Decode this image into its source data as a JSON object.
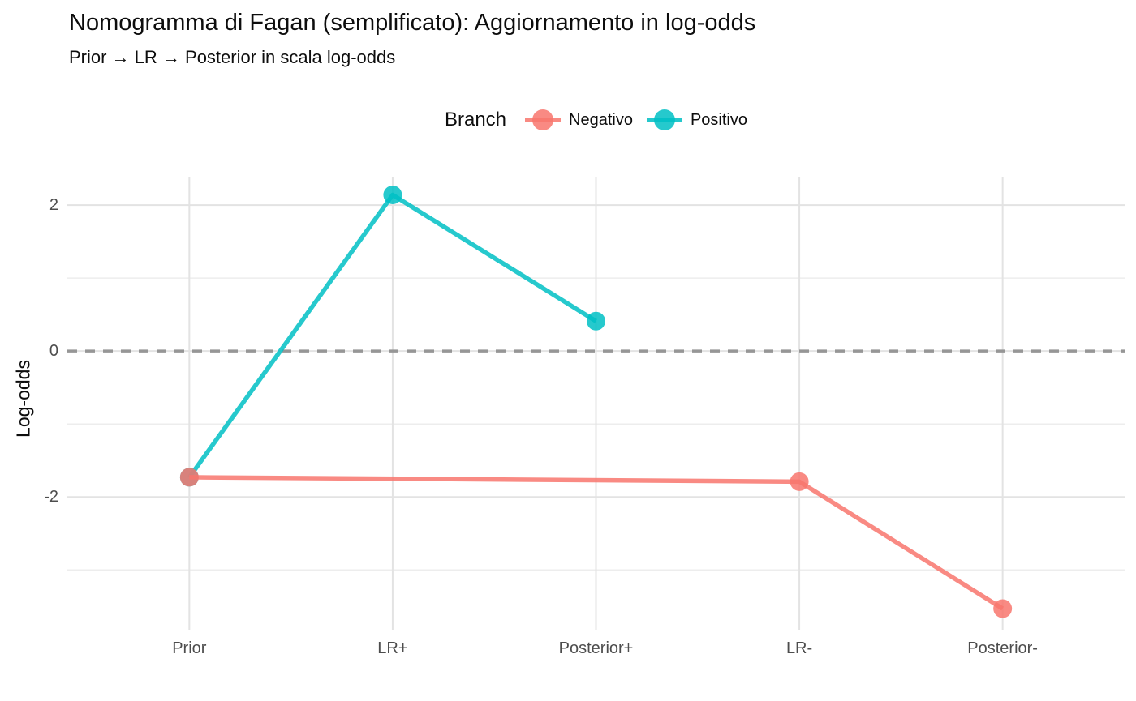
{
  "chart_data": {
    "type": "line",
    "title": "Nomogramma di Fagan (semplificato): Aggiornamento in log-odds",
    "subtitle": "Prior → LR → Posterior in scala log-odds",
    "ylabel": "Log-odds",
    "xlabel": "",
    "categories": [
      "Prior",
      "LR+",
      "Posterior+",
      "LR-",
      "Posterior-"
    ],
    "y_axis": {
      "major_ticks": [
        2,
        0,
        -2
      ],
      "minor_ticks": [
        1,
        -1,
        -3
      ],
      "ylim": [
        -3.83,
        2.39
      ]
    },
    "reference_line": {
      "y": 0,
      "style": "dashed",
      "color": "#969696"
    },
    "legend": {
      "title": "Branch",
      "position": "top"
    },
    "grid": {
      "major_color": "#e3e3e3",
      "minor_color": "#ededed",
      "background": "#ffffff"
    },
    "series": [
      {
        "name": "Negativo",
        "color": "#F8766D",
        "points": [
          {
            "x": "Prior",
            "y": -1.73
          },
          {
            "x": "LR-",
            "y": -1.79
          },
          {
            "x": "Posterior-",
            "y": -3.53
          }
        ]
      },
      {
        "name": "Positivo",
        "color": "#00BFC4",
        "points": [
          {
            "x": "Prior",
            "y": -1.73
          },
          {
            "x": "LR+",
            "y": 2.14
          },
          {
            "x": "Posterior+",
            "y": 0.41
          }
        ]
      }
    ]
  }
}
